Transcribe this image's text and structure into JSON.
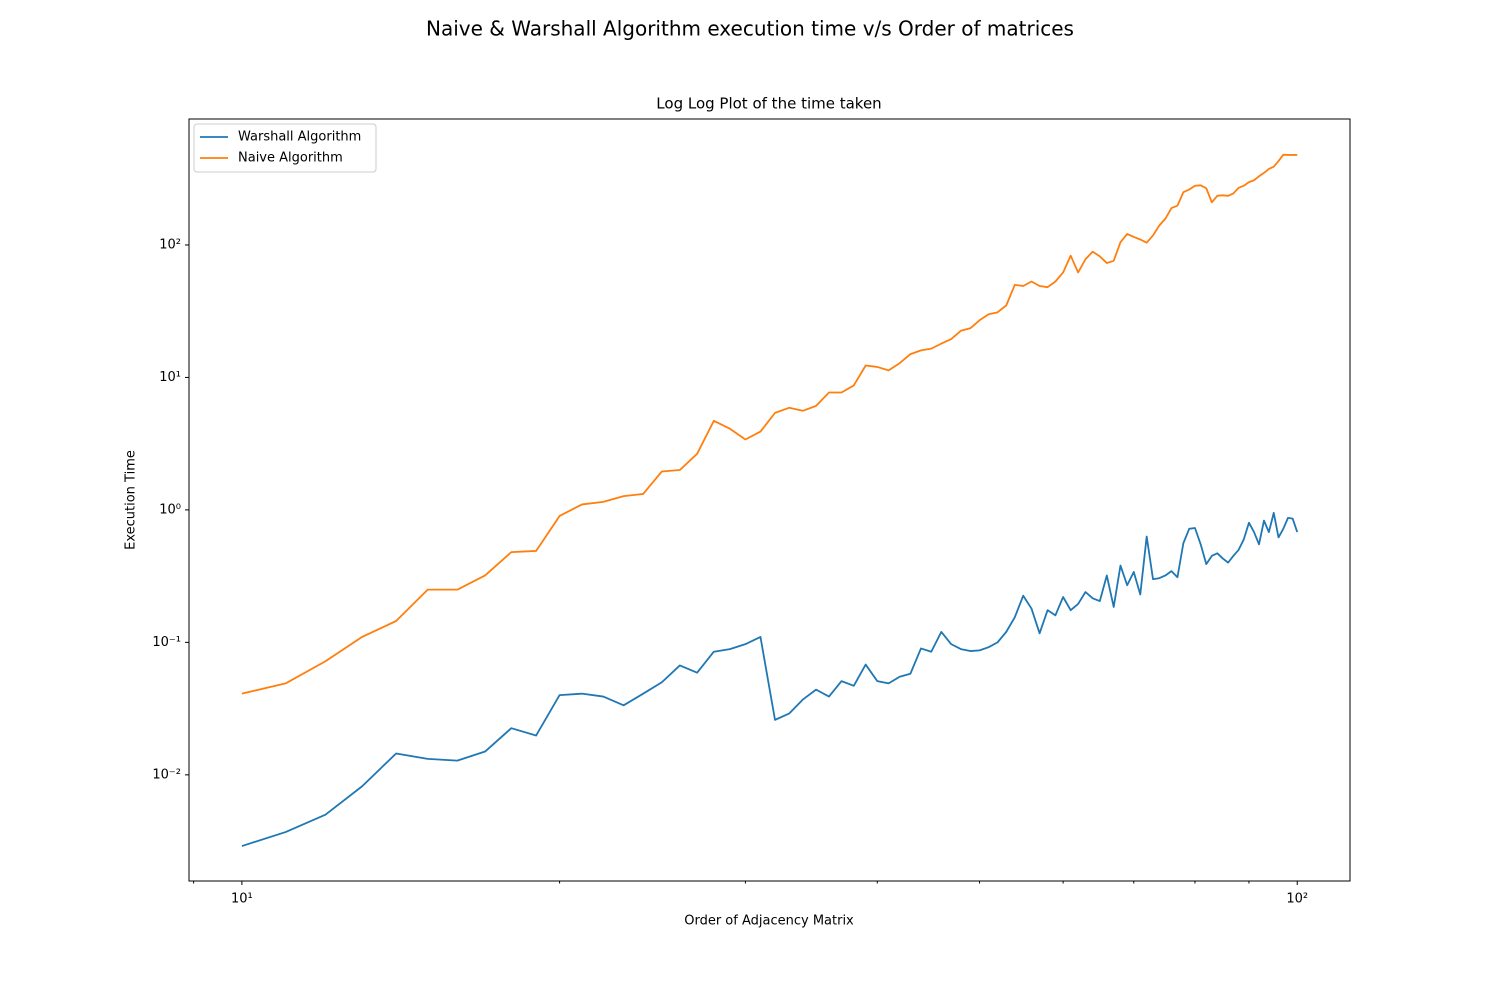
{
  "chart_data": {
    "type": "line",
    "title": "Naive & Warshall Algorithm execution time v/s Order of matrices",
    "subtitle": "Log Log Plot of the time taken",
    "x_label": "Order of Adjacency Matrix",
    "y_label": "Execution Time",
    "x_log": true,
    "y_log": true,
    "grid": false,
    "legend": "upper left",
    "xlim": [
      8.91,
      112.2
    ],
    "ylim": [
      0.00158,
      893
    ],
    "xticks": [
      {
        "value": 10,
        "label": "10¹"
      },
      {
        "value": 100,
        "label": "10²"
      }
    ],
    "x_minor_ticks": [
      9,
      20,
      30,
      40,
      50,
      60,
      70,
      80,
      90
    ],
    "yticks": [
      {
        "value": 0.01,
        "label": "10⁻²"
      },
      {
        "value": 0.1,
        "label": "10⁻¹"
      },
      {
        "value": 1,
        "label": "10⁰"
      },
      {
        "value": 10,
        "label": "10¹"
      },
      {
        "value": 100,
        "label": "10²"
      }
    ],
    "x": [
      10,
      11,
      12,
      13,
      14,
      15,
      16,
      17,
      18,
      19,
      20,
      21,
      22,
      23,
      24,
      25,
      26,
      27,
      28,
      29,
      30,
      31,
      32,
      33,
      34,
      35,
      36,
      37,
      38,
      39,
      40,
      41,
      42,
      43,
      44,
      45,
      46,
      47,
      48,
      49,
      50,
      51,
      52,
      53,
      54,
      55,
      56,
      57,
      58,
      59,
      60,
      61,
      62,
      63,
      64,
      65,
      66,
      67,
      68,
      69,
      70,
      71,
      72,
      73,
      74,
      75,
      76,
      77,
      78,
      79,
      80,
      81,
      82,
      83,
      84,
      85,
      86,
      87,
      88,
      89,
      90,
      91,
      92,
      93,
      94,
      95,
      96,
      97,
      98,
      99,
      100
    ],
    "series": [
      {
        "name": "Warshall Algorithm",
        "color": "#1f77b4",
        "values": [
          0.0029,
          0.0037,
          0.005,
          0.0082,
          0.0145,
          0.0132,
          0.0128,
          0.015,
          0.0225,
          0.0198,
          0.04,
          0.041,
          0.039,
          0.0335,
          0.041,
          0.05,
          0.067,
          0.059,
          0.085,
          0.089,
          0.097,
          0.11,
          0.026,
          0.029,
          0.037,
          0.044,
          0.039,
          0.051,
          0.047,
          0.068,
          0.051,
          0.049,
          0.055,
          0.058,
          0.09,
          0.085,
          0.12,
          0.097,
          0.089,
          0.086,
          0.087,
          0.092,
          0.1,
          0.12,
          0.155,
          0.225,
          0.18,
          0.117,
          0.175,
          0.16,
          0.22,
          0.175,
          0.195,
          0.24,
          0.215,
          0.205,
          0.32,
          0.185,
          0.38,
          0.27,
          0.34,
          0.23,
          0.63,
          0.3,
          0.305,
          0.32,
          0.345,
          0.31,
          0.56,
          0.72,
          0.73,
          0.55,
          0.39,
          0.45,
          0.47,
          0.43,
          0.4,
          0.45,
          0.5,
          0.6,
          0.8,
          0.68,
          0.55,
          0.83,
          0.68,
          0.95,
          0.62,
          0.72,
          0.87,
          0.86,
          0.68
        ]
      },
      {
        "name": "Naive Algorithm",
        "color": "#ff7f0e",
        "values": [
          0.041,
          0.049,
          0.072,
          0.11,
          0.145,
          0.25,
          0.25,
          0.32,
          0.48,
          0.49,
          0.9,
          1.1,
          1.15,
          1.27,
          1.32,
          1.95,
          2.0,
          2.65,
          4.7,
          4.1,
          3.4,
          3.9,
          5.4,
          5.9,
          5.6,
          6.1,
          7.7,
          7.7,
          8.7,
          12.3,
          12.0,
          11.3,
          12.8,
          15.0,
          16.0,
          16.5,
          18,
          19.5,
          22.5,
          23.5,
          27,
          30,
          31,
          35,
          50,
          49,
          53,
          49,
          48,
          53,
          62,
          83,
          62,
          78,
          89,
          82,
          73,
          76,
          105,
          121,
          115,
          110,
          104,
          118,
          140,
          158,
          190,
          198,
          250,
          262,
          280,
          282,
          268,
          210,
          235,
          237,
          235,
          245,
          270,
          280,
          298,
          308,
          330,
          350,
          375,
          390,
          430,
          480,
          478,
          478,
          478
        ]
      }
    ]
  }
}
